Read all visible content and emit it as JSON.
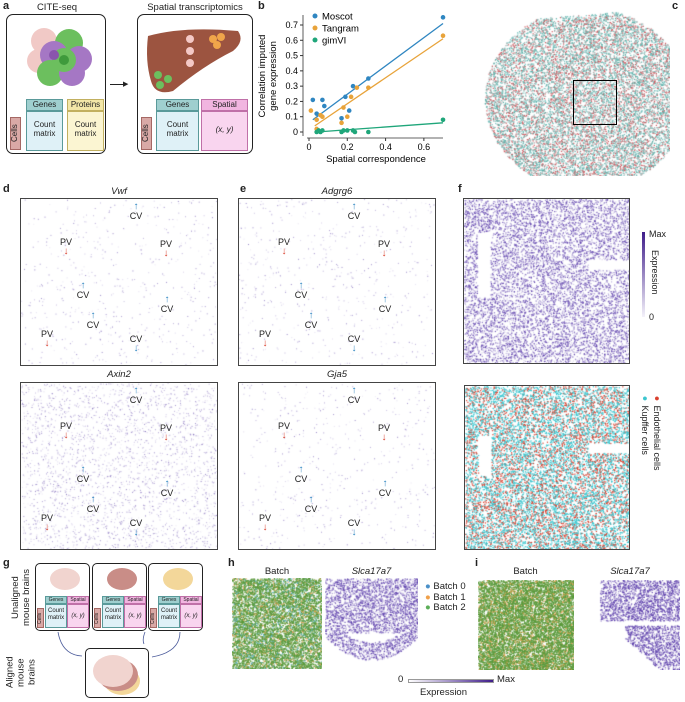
{
  "panel_labels": {
    "a": "a",
    "b": "b",
    "c": "c",
    "d": "d",
    "e": "e",
    "f": "f",
    "g": "g",
    "h": "h",
    "i": "i"
  },
  "a": {
    "left_title": "CITE-seq",
    "right_title": "Spatial transcriptomics",
    "cells": "Cells",
    "genes": "Genes",
    "proteins": "Proteins",
    "spatial": "Spatial",
    "count_matrix": "Count matrix",
    "xy": "(x, y)"
  },
  "c": {},
  "d": {
    "top_title": "Vwf",
    "bottom_title": "Axin2",
    "top_markers": [
      "PV",
      "CV",
      "PV",
      "CV",
      "CV",
      "CV",
      "PV",
      "CV"
    ],
    "bottom_markers": [
      "PV",
      "CV",
      "PV",
      "CV",
      "CV",
      "CV",
      "PV",
      "CV"
    ]
  },
  "e": {
    "top_title": "Adgrg6",
    "bottom_title": "Gja5",
    "top_markers": [
      "PV",
      "CV",
      "PV",
      "CV",
      "CV",
      "CV",
      "PV",
      "CV"
    ],
    "bottom_markers": [
      "PV",
      "CV",
      "PV",
      "CV",
      "CV",
      "CV",
      "PV",
      "CV"
    ]
  },
  "f": {
    "colorbar_max": "Max",
    "colorbar_min": "0",
    "colorbar_label": "Expression",
    "legend": [
      {
        "label": "Endothelial cells",
        "color": "#d9412f"
      },
      {
        "label": "Kupffer cells",
        "color": "#3cc6cf"
      }
    ]
  },
  "g": {
    "unaligned": "Unaligned mouse brains",
    "aligned": "Aligned mouse brains",
    "cells": "Cells",
    "genes": "Genes",
    "spatial": "Spatial",
    "count_matrix": "Count matrix",
    "xy": "(x, y)"
  },
  "h": {
    "batch_title": "Batch",
    "gene_title": "Slca17a7"
  },
  "i": {
    "batch_title": "Batch",
    "gene_title": "Slca17a7"
  },
  "batch_legend": [
    {
      "label": "Batch 0",
      "color": "#4a90c8"
    },
    {
      "label": "Batch 1",
      "color": "#f0a04a"
    },
    {
      "label": "Batch 2",
      "color": "#5cae58"
    }
  ],
  "expression_bar": {
    "min": "0",
    "max": "Max",
    "label": "Expression"
  },
  "chart_data": {
    "type": "scatter",
    "title": "",
    "xlabel": "Spatial correspondence",
    "ylabel": "Correlation imputed gene expression",
    "xlim": [
      0,
      0.7
    ],
    "ylim": [
      -0.02,
      0.78
    ],
    "xticks": [
      "0",
      "0.2",
      "0.4",
      "0.6"
    ],
    "xtick_values": [
      0,
      0.2,
      0.4,
      0.6
    ],
    "yticks": [
      "0",
      "0.1",
      "0.2",
      "0.3",
      "0.4",
      "0.5",
      "0.6",
      "0.7"
    ],
    "ytick_values": [
      0,
      0.1,
      0.2,
      0.3,
      0.4,
      0.5,
      0.6,
      0.7
    ],
    "legend_position": "top-left",
    "series": [
      {
        "name": "Moscot",
        "color": "#2f86c1",
        "points": [
          [
            0.02,
            0.21
          ],
          [
            0.04,
            0.12
          ],
          [
            0.07,
            0.21
          ],
          [
            0.08,
            0.17
          ],
          [
            0.17,
            0.09
          ],
          [
            0.19,
            0.23
          ],
          [
            0.21,
            0.14
          ],
          [
            0.23,
            0.3
          ],
          [
            0.31,
            0.35
          ],
          [
            0.7,
            0.75
          ]
        ],
        "fit": [
          [
            0.02,
            0.08
          ],
          [
            0.7,
            0.71
          ]
        ]
      },
      {
        "name": "Tangram",
        "color": "#e8a33a",
        "points": [
          [
            0.01,
            0.14
          ],
          [
            0.04,
            0.08
          ],
          [
            0.04,
            0.02
          ],
          [
            0.06,
            0.11
          ],
          [
            0.07,
            0.1
          ],
          [
            0.17,
            0.06
          ],
          [
            0.18,
            0.16
          ],
          [
            0.2,
            0.1
          ],
          [
            0.22,
            0.23
          ],
          [
            0.25,
            0.29
          ],
          [
            0.31,
            0.29
          ],
          [
            0.7,
            0.63
          ]
        ],
        "fit": [
          [
            0.03,
            0.04
          ],
          [
            0.7,
            0.61
          ]
        ]
      },
      {
        "name": "gimVI",
        "color": "#1fa67a",
        "points": [
          [
            0.04,
            0.0
          ],
          [
            0.05,
            0.01
          ],
          [
            0.06,
            0.0
          ],
          [
            0.07,
            0.01
          ],
          [
            0.17,
            0.0
          ],
          [
            0.18,
            0.01
          ],
          [
            0.2,
            0.01
          ],
          [
            0.23,
            0.01
          ],
          [
            0.24,
            0.0
          ],
          [
            0.31,
            0.0
          ],
          [
            0.7,
            0.08
          ]
        ],
        "fit": [
          [
            0.04,
            0.0
          ],
          [
            0.7,
            0.06
          ]
        ]
      }
    ]
  }
}
